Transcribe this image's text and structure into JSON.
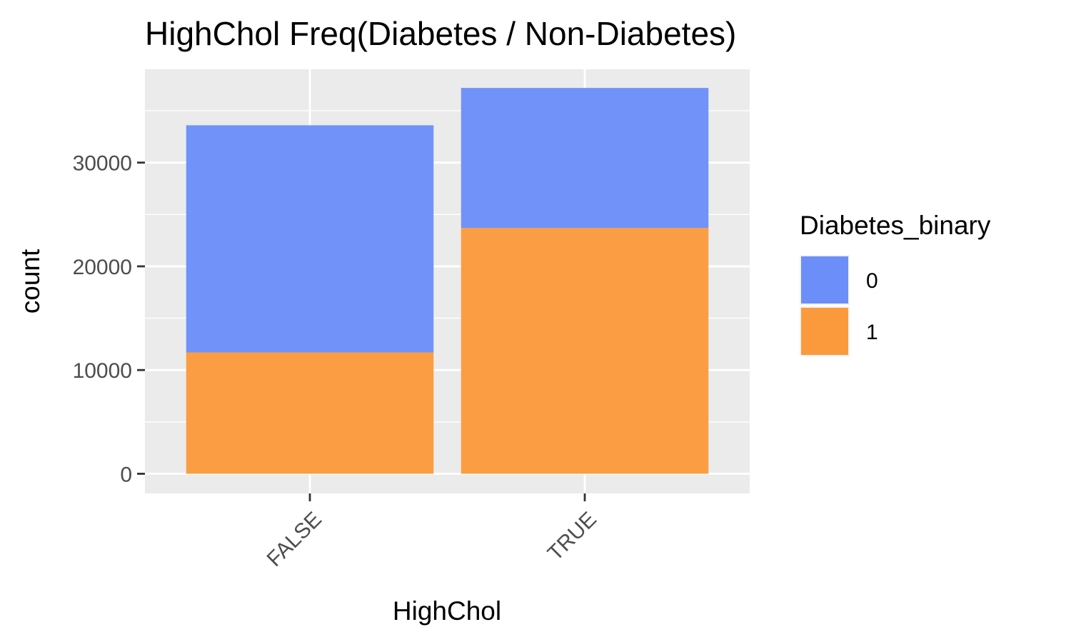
{
  "chart_data": {
    "type": "bar",
    "stacked": true,
    "title": "HighChol Freq(Diabetes / Non-Diabetes)",
    "xlabel": "HighChol",
    "ylabel": "count",
    "categories": [
      "FALSE",
      "TRUE"
    ],
    "series": [
      {
        "name": "0",
        "values": [
          21900,
          13500
        ],
        "color": "#6c8ef8"
      },
      {
        "name": "1",
        "values": [
          11700,
          23700
        ],
        "color": "#fb9a3c"
      }
    ],
    "y_ticks": [
      0,
      10000,
      20000,
      30000
    ],
    "y_tick_labels": [
      "0",
      "10000",
      "20000",
      "30000"
    ],
    "ylim": [
      -1900,
      39000
    ],
    "legend": {
      "title": "Diabetes_binary",
      "position": "right"
    },
    "grid": true,
    "panel_background": "#ebebeb",
    "grid_color": "#ffffff"
  }
}
